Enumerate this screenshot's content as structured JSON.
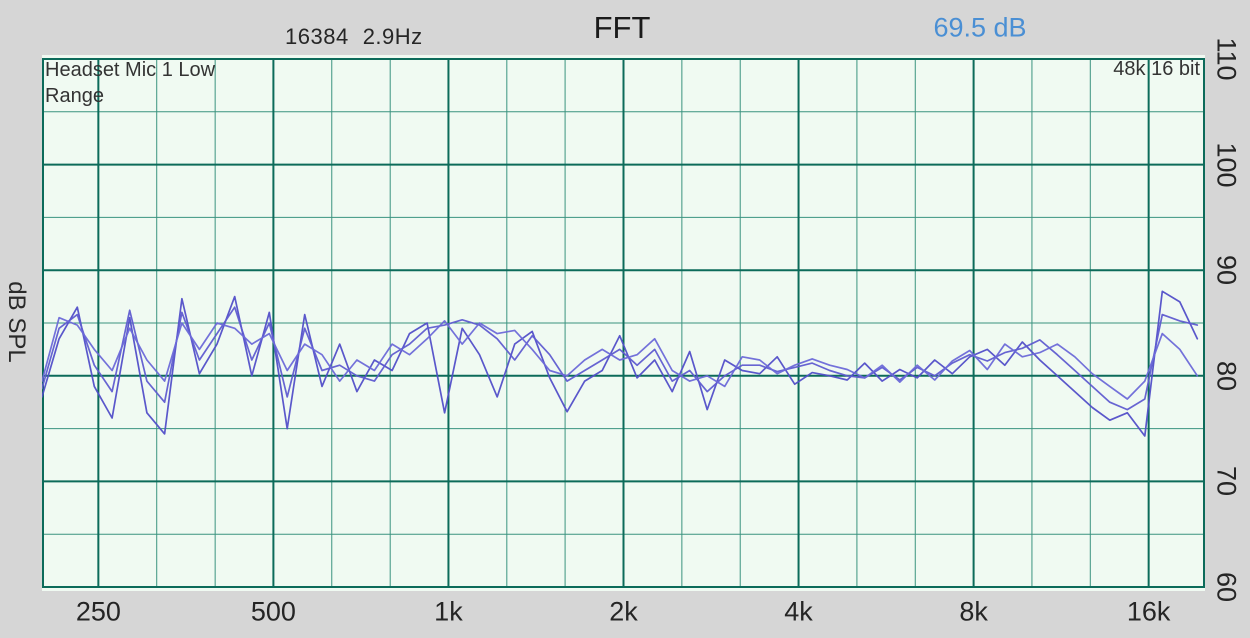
{
  "header": {
    "fft_size": "16384",
    "resolution": "2.9Hz",
    "title": "FFT",
    "level_readout": "69.5 dB"
  },
  "plot": {
    "channel_line1": "Headset Mic 1 Low",
    "channel_line2": "Range",
    "sample_rate_info": "48k 16 bit",
    "y_axis_name": "dB SPL"
  },
  "colors": {
    "page_bg": "#d6d6d6",
    "plot_bg": "#f0faf2",
    "grid_major": "#0c6b5a",
    "grid_minor": "#3a937f",
    "readout_blue": "#4a8fd4",
    "trace_1": "#514ec8",
    "trace_2": "#5f5cd0",
    "trace_3": "#6c69d8"
  },
  "chart_data": {
    "type": "line",
    "title": "FFT",
    "subtitle_left": "16384 2.9Hz",
    "readout": "69.5 dB",
    "ylabel": "dB SPL",
    "x_scale": "log",
    "x_range_hz": [
      200,
      20000
    ],
    "y_range_db": [
      60,
      110
    ],
    "grid": true,
    "x_ticks": [
      {
        "hz": 250,
        "label": "250"
      },
      {
        "hz": 500,
        "label": "500"
      },
      {
        "hz": 1000,
        "label": "1k"
      },
      {
        "hz": 2000,
        "label": "2k"
      },
      {
        "hz": 4000,
        "label": "4k"
      },
      {
        "hz": 8000,
        "label": "8k"
      },
      {
        "hz": 16000,
        "label": "16k"
      }
    ],
    "x_major_hz": [
      250,
      500,
      1000,
      2000,
      4000,
      8000,
      16000
    ],
    "x_gridlines_hz": [
      250,
      315,
      397,
      500,
      630,
      794,
      1000,
      1260,
      1587,
      2000,
      2520,
      3175,
      4000,
      5040,
      6350,
      8000,
      10079,
      12699,
      16000
    ],
    "y_major_db": [
      110,
      100,
      90,
      80,
      70,
      60
    ],
    "y_minor_db": [
      105,
      95,
      85,
      75,
      65
    ],
    "x_hz": [
      200,
      214,
      230,
      246,
      264,
      283,
      303,
      325,
      348,
      373,
      400,
      429,
      459,
      492,
      528,
      566,
      606,
      650,
      696,
      746,
      800,
      857,
      919,
      985,
      1056,
      1131,
      1213,
      1300,
      1393,
      1493,
      1600,
      1715,
      1838,
      1970,
      2111,
      2263,
      2425,
      2599,
      2786,
      2986,
      3200,
      3430,
      3676,
      3940,
      4222,
      4525,
      4850,
      5198,
      5571,
      5972,
      6400,
      6859,
      7352,
      7879,
      8445,
      9051,
      9701,
      10397,
      11143,
      11943,
      12800,
      13719,
      14704,
      15759,
      16890,
      18102,
      19401
    ],
    "series": [
      {
        "name": "fft-trace-1",
        "values": [
          78.0,
          83.5,
          86.5,
          79.0,
          76.0,
          85.5,
          76.5,
          74.5,
          87.3,
          80.2,
          83.0,
          87.5,
          80.0,
          86.0,
          75.0,
          85.8,
          79.0,
          83.0,
          78.5,
          81.5,
          80.5,
          84.0,
          85.0,
          76.5,
          84.5,
          82.0,
          78.0,
          83.0,
          84.2,
          79.8,
          76.6,
          79.5,
          80.5,
          83.8,
          79.8,
          81.5,
          78.5,
          82.3,
          76.8,
          81.5,
          80.5,
          80.2,
          81.8,
          79.2,
          80.3,
          80.0,
          79.6,
          81.2,
          79.5,
          80.6,
          79.8,
          81.5,
          80.2,
          81.8,
          82.5,
          81.0,
          83.2,
          81.5,
          80.0,
          78.5,
          77.0,
          75.8,
          76.5,
          74.3,
          88.0,
          87.0,
          83.5
        ]
      },
      {
        "name": "fft-trace-2",
        "values": [
          78.8,
          84.5,
          85.8,
          81.0,
          78.5,
          86.2,
          79.5,
          77.5,
          86.0,
          81.5,
          84.0,
          86.5,
          81.5,
          85.0,
          78.0,
          84.5,
          80.5,
          81.0,
          80.0,
          79.5,
          82.0,
          83.0,
          84.5,
          84.8,
          85.3,
          84.8,
          83.5,
          81.5,
          83.8,
          82.0,
          79.5,
          80.5,
          81.5,
          82.5,
          81.0,
          82.5,
          79.5,
          80.5,
          78.5,
          80.0,
          81.0,
          81.0,
          80.4,
          80.8,
          81.2,
          80.5,
          80.0,
          79.8,
          80.8,
          79.6,
          80.8,
          80.0,
          81.2,
          82.0,
          81.4,
          82.2,
          82.6,
          83.4,
          82.0,
          80.5,
          79.0,
          77.5,
          76.8,
          77.8,
          85.8,
          85.2,
          84.8
        ]
      },
      {
        "name": "fft-trace-3",
        "values": [
          79.5,
          85.5,
          84.8,
          82.5,
          80.5,
          84.5,
          81.5,
          79.5,
          85.0,
          82.5,
          85.0,
          84.5,
          83.0,
          84.0,
          80.5,
          83.0,
          82.0,
          79.5,
          81.5,
          80.5,
          83.0,
          82.0,
          83.5,
          85.2,
          83.0,
          85.0,
          84.0,
          84.3,
          82.5,
          80.5,
          80.0,
          81.5,
          82.5,
          81.5,
          82.0,
          83.5,
          80.5,
          79.5,
          80.0,
          79.0,
          81.8,
          81.5,
          80.2,
          81.0,
          81.6,
          81.0,
          80.6,
          79.8,
          81.0,
          79.4,
          81.0,
          79.6,
          81.4,
          82.4,
          80.6,
          83.0,
          81.8,
          82.2,
          83.0,
          81.8,
          80.2,
          79.0,
          77.8,
          79.5,
          84.0,
          82.5,
          80.0
        ]
      }
    ]
  }
}
